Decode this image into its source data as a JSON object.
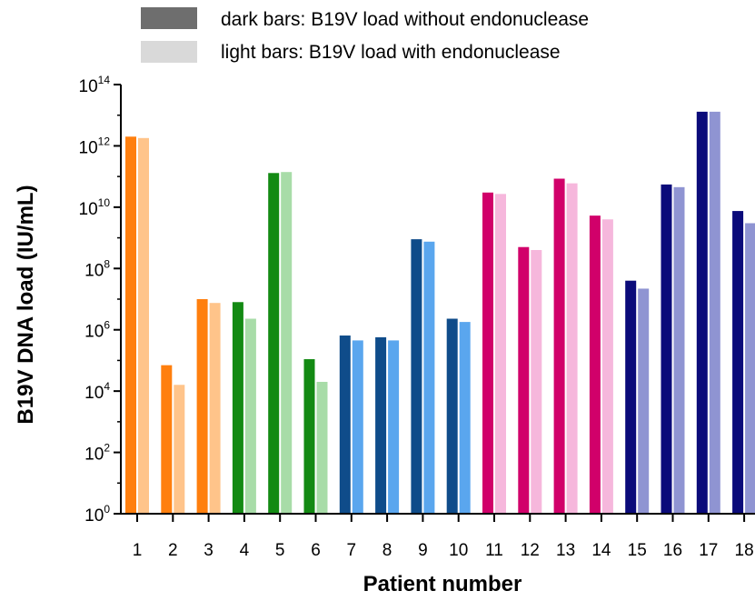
{
  "chart_data": {
    "type": "bar",
    "ylabel": "B19V DNA load (IU/mL)",
    "xlabel": "Patient number",
    "yscale": "log10",
    "ylim": [
      1,
      100000000000000.0
    ],
    "ytick_base": "10",
    "ytick_exponents": [
      "0",
      "2",
      "4",
      "6",
      "8",
      "10",
      "12",
      "14"
    ],
    "legend": {
      "position": "top",
      "entries": [
        {
          "label": "dark bars: B19V load without endonuclease",
          "color": "#6e6e6e"
        },
        {
          "label": "light bars: B19V load with endonuclease",
          "color": "#d9d9d9"
        }
      ]
    },
    "categories": [
      "1",
      "2",
      "3",
      "4",
      "5",
      "6",
      "7",
      "8",
      "9",
      "10",
      "11",
      "12",
      "13",
      "14",
      "15",
      "16",
      "17",
      "18"
    ],
    "series": [
      {
        "values": [
          2000000000000.0,
          70000.0,
          10000000.0,
          8000000.0,
          130000000000.0,
          110000.0,
          650000.0,
          570000.0,
          900000000.0,
          2300000.0,
          30000000000.0,
          500000000.0,
          85000000000.0,
          5300000000.0,
          40000000.0,
          55000000000.0,
          13000000000000.0,
          7500000000.0
        ]
      },
      {
        "values": [
          1800000000000.0,
          16000.0,
          7500000.0,
          2300000.0,
          140000000000.0,
          20000.0,
          450000.0,
          450000.0,
          750000000.0,
          1800000.0,
          27000000000.0,
          400000000.0,
          60000000000.0,
          4000000000.0,
          22000000.0,
          45000000000.0,
          13000000000000.0,
          3000000000.0
        ]
      }
    ],
    "bar_colors": {
      "dark": [
        "#ff7f0e",
        "#ff7f0e",
        "#ff7f0e",
        "#138a13",
        "#138a13",
        "#138a13",
        "#0f4c8a",
        "#0f4c8a",
        "#0f4c8a",
        "#0f4c8a",
        "#d1006a",
        "#d1006a",
        "#d1006a",
        "#d1006a",
        "#0b0b7a",
        "#0b0b7a",
        "#0b0b7a",
        "#0b0b7a"
      ],
      "light": [
        "#ffc48a",
        "#ffc48a",
        "#ffc48a",
        "#a8dca8",
        "#a8dca8",
        "#a8dca8",
        "#5aa6ee",
        "#5aa6ee",
        "#5aa6ee",
        "#5aa6ee",
        "#f6b7dc",
        "#f6b7dc",
        "#f6b7dc",
        "#f6b7dc",
        "#8f94d2",
        "#8f94d2",
        "#8f94d2",
        "#8f94d2"
      ]
    }
  }
}
